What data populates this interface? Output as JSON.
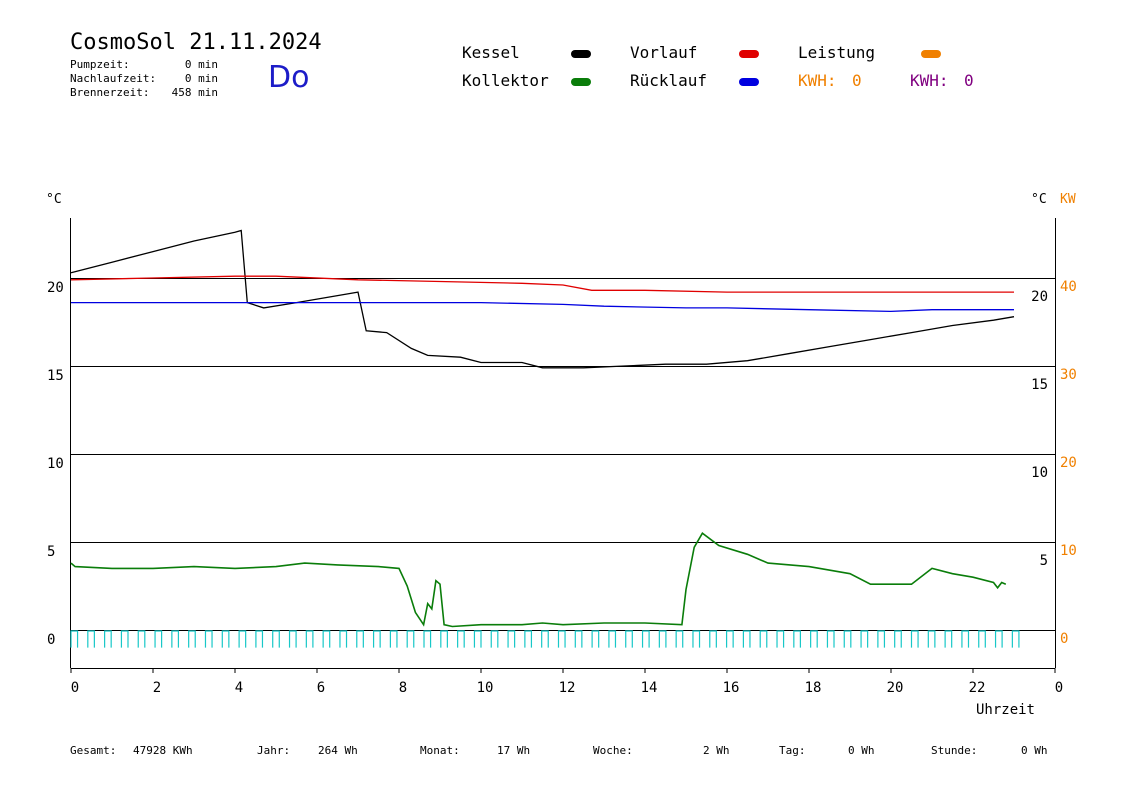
{
  "header": {
    "title": "CosmoSol 21.11.2024",
    "weekday": "Do",
    "stats": [
      {
        "label": "Pumpzeit:",
        "value": "0 min"
      },
      {
        "label": "Nachlaufzeit:",
        "value": "0 min"
      },
      {
        "label": "Brennerzeit:",
        "value": "458 min"
      }
    ]
  },
  "legend": {
    "kessel": {
      "label": "Kessel",
      "color": "#000000"
    },
    "kollektor": {
      "label": "Kollektor",
      "color": "#0a7d0a"
    },
    "vorlauf": {
      "label": "Vorlauf",
      "color": "#e00000"
    },
    "ruecklauf": {
      "label": "Rücklauf",
      "color": "#0000e0"
    },
    "leistung": {
      "label": "Leistung",
      "color": "#f08000"
    },
    "kwh1": {
      "label": "KWH:",
      "value": "0",
      "color": "#f08000"
    },
    "kwh2": {
      "label": "KWH:",
      "value": "0",
      "color": "#800080"
    }
  },
  "footer": [
    {
      "label": "Gesamt:",
      "value": "47928 KWh"
    },
    {
      "label": "Jahr:",
      "value": "264 Wh"
    },
    {
      "label": "Monat:",
      "value": "17 Wh"
    },
    {
      "label": "Woche:",
      "value": "2 Wh"
    },
    {
      "label": "Tag:",
      "value": "0 Wh"
    },
    {
      "label": "Stunde:",
      "value": "0 Wh"
    }
  ],
  "chart_data": {
    "type": "line",
    "xlabel": "Uhrzeit",
    "ylabel_left": "°C",
    "ylabel_right": "°C",
    "ylabel_right2": "KW",
    "xlim": [
      0,
      24
    ],
    "ylim": [
      -1.5,
      24
    ],
    "grid": true,
    "x_ticks": [
      "0",
      "2",
      "4",
      "6",
      "8",
      "10",
      "12",
      "14",
      "16",
      "18",
      "20",
      "22",
      "0"
    ],
    "y_ticks_left": [
      "0",
      "5",
      "10",
      "15",
      "20"
    ],
    "y_ticks_right": [
      "5",
      "10",
      "15",
      "20"
    ],
    "y_ticks_kw": [
      "0",
      "10",
      "20",
      "30",
      "40"
    ],
    "series": [
      {
        "name": "Kessel",
        "color": "#000000",
        "x": [
          0,
          1,
          2,
          3,
          4,
          4.15,
          4.3,
          4.7,
          5.5,
          6.5,
          7.0,
          7.2,
          7.7,
          8.3,
          8.7,
          9.5,
          10.0,
          11.0,
          11.5,
          12.5,
          13.5,
          14.5,
          15.5,
          16.5,
          17.5,
          18.5,
          19.5,
          20.5,
          21.5,
          22.5,
          23.0
        ],
        "y": [
          20.3,
          20.9,
          21.5,
          22.1,
          22.6,
          22.7,
          18.6,
          18.3,
          18.6,
          19.0,
          19.2,
          17.0,
          16.9,
          16.0,
          15.6,
          15.5,
          15.2,
          15.2,
          14.9,
          14.9,
          15.0,
          15.1,
          15.1,
          15.3,
          15.7,
          16.1,
          16.5,
          16.9,
          17.3,
          17.6,
          17.8
        ]
      },
      {
        "name": "Vorlauf",
        "color": "#e00000",
        "x": [
          0,
          2,
          4,
          5,
          7,
          9,
          11,
          12,
          12.7,
          14,
          16,
          18,
          20,
          23
        ],
        "y": [
          19.9,
          20.0,
          20.1,
          20.1,
          19.9,
          19.8,
          19.7,
          19.6,
          19.3,
          19.3,
          19.2,
          19.2,
          19.2,
          19.2
        ]
      },
      {
        "name": "Rücklauf",
        "color": "#0000e0",
        "x": [
          0,
          2,
          4,
          6,
          8,
          10,
          12,
          13,
          15,
          16,
          18,
          20,
          21,
          23
        ],
        "y": [
          18.6,
          18.6,
          18.6,
          18.6,
          18.6,
          18.6,
          18.5,
          18.4,
          18.3,
          18.3,
          18.2,
          18.1,
          18.2,
          18.2
        ]
      },
      {
        "name": "Kollektor",
        "color": "#0a7d0a",
        "x": [
          0,
          0.1,
          1,
          2,
          3,
          4,
          5,
          5.7,
          6.5,
          7.5,
          8.0,
          8.2,
          8.4,
          8.6,
          8.7,
          8.8,
          8.9,
          9.0,
          9.1,
          9.3,
          10,
          11,
          11.5,
          12,
          13,
          14,
          14.9,
          15.0,
          15.2,
          15.4,
          15.8,
          16.5,
          17,
          18,
          19,
          19.5,
          20,
          20.5,
          21,
          21.5,
          22,
          22.5,
          22.6,
          22.7,
          22.8
        ],
        "y": [
          3.8,
          3.6,
          3.5,
          3.5,
          3.6,
          3.5,
          3.6,
          3.8,
          3.7,
          3.6,
          3.5,
          2.5,
          1.0,
          0.3,
          1.5,
          1.2,
          2.8,
          2.6,
          0.3,
          0.2,
          0.3,
          0.3,
          0.4,
          0.3,
          0.4,
          0.4,
          0.3,
          2.3,
          4.7,
          5.5,
          4.8,
          4.3,
          3.8,
          3.6,
          3.2,
          2.6,
          2.6,
          2.6,
          3.5,
          3.2,
          3.0,
          2.7,
          2.4,
          2.7,
          2.6
        ]
      },
      {
        "name": "Leistung",
        "color": "#18c8c8",
        "x": [
          0,
          23
        ],
        "y": [
          -0.5,
          -0.5
        ]
      }
    ]
  }
}
